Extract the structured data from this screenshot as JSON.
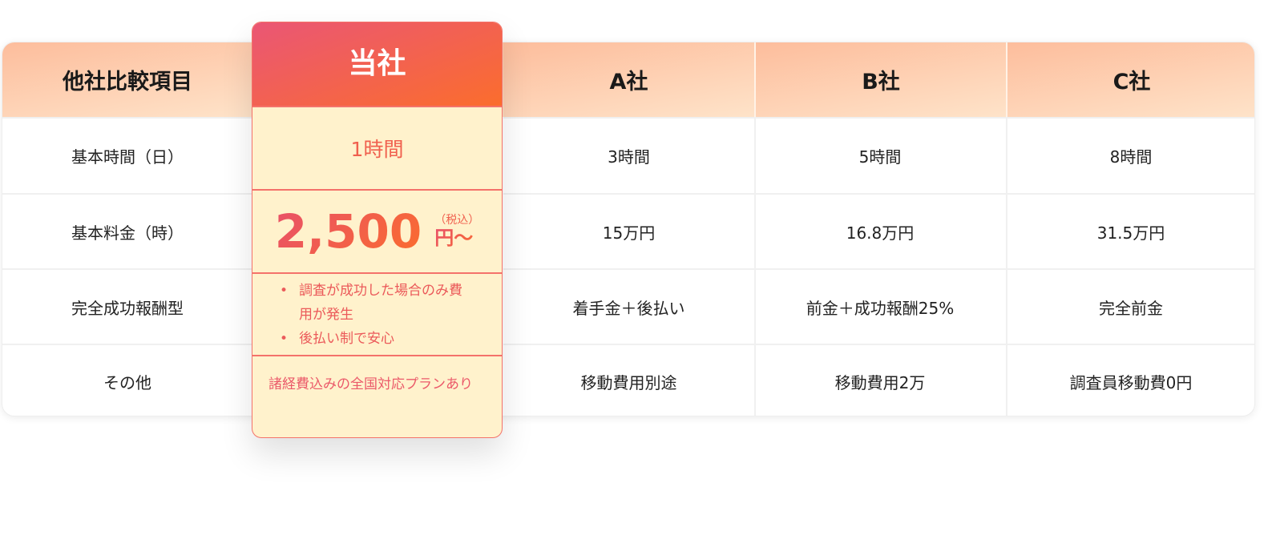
{
  "header": {
    "item": "他社比較項目",
    "ours": "当社",
    "a": "A社",
    "b": "B社",
    "c": "C社"
  },
  "rows": [
    {
      "label": "基本時間（日）",
      "ours": "1時間",
      "a": "3時間",
      "b": "5時間",
      "c": "8時間"
    },
    {
      "label": "基本料金（時）",
      "ours_price": "2,500",
      "ours_tax": "（税込）",
      "ours_unit": "円～",
      "a": "15万円",
      "b": "16.8万円",
      "c": "31.5万円"
    },
    {
      "label": "完全成功報酬型",
      "ours_bullets": [
        "調査が成功した場合のみ費用が発生",
        "後払い制で安心"
      ],
      "a": "着手金＋後払い",
      "b": "前金＋成功報酬25%",
      "c": "完全前金"
    },
    {
      "label": "その他",
      "ours": "諸経費込みの全国対応プランあり",
      "a": "移動費用別途",
      "b": "移動費用2万",
      "c": "調査員移動費0円"
    }
  ],
  "colors": {
    "accent": "#f4726a",
    "card_bg": "#fff2cc",
    "header_from": "#fdbd9c",
    "header_to": "#fee3c9"
  }
}
